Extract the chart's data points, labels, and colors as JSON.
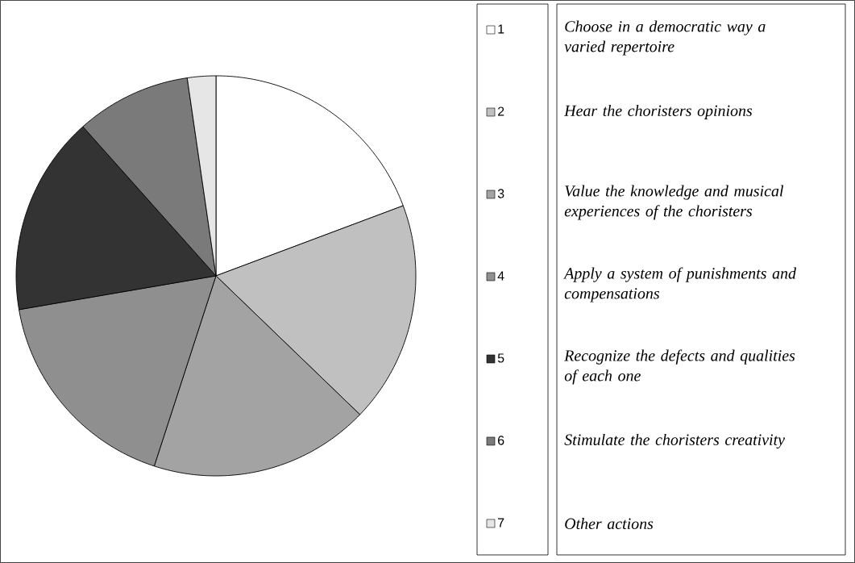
{
  "chart_data": {
    "type": "pie",
    "categories": [
      "1",
      "2",
      "3",
      "4",
      "5",
      "6",
      "7"
    ],
    "values": [
      19.3,
      17.9,
      17.8,
      17.3,
      16.1,
      9.3,
      2.3
    ],
    "colors": [
      "#ffffff",
      "#c0c0c0",
      "#a3a3a3",
      "#8f8f8f",
      "#333333",
      "#7a7a7a",
      "#e6e6e6"
    ],
    "legend": "right",
    "annotations": [
      "Choose in a democratic way a varied repertoire",
      "Hear the choristers opinions",
      "Value the knowledge and musical experiences of the choristers",
      "Apply a system of punishments and compensations",
      "Recognize the defects and qualities of each one",
      "Stimulate the choristers creativity",
      "Other actions"
    ]
  }
}
